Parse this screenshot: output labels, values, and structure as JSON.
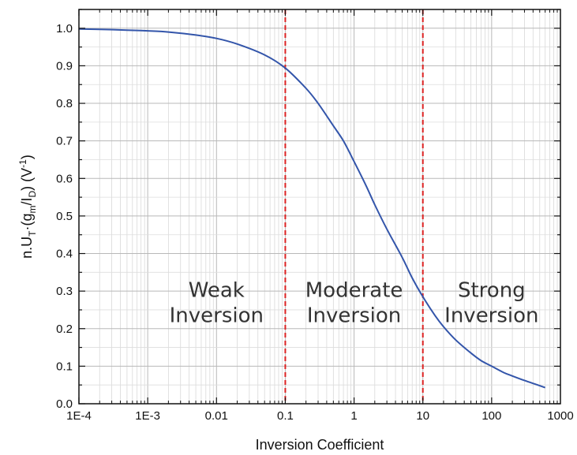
{
  "chart_data": {
    "type": "line",
    "title": "",
    "xlabel": "Inversion Coefficient",
    "ylabel": {
      "parts": [
        "n.U",
        "T",
        "·(g",
        "m",
        "/I",
        "D",
        ") (V",
        "-1",
        ")"
      ]
    },
    "x_scale": "log",
    "xlim": [
      0.0001,
      1000
    ],
    "ylim": [
      0,
      1.05
    ],
    "grid": true,
    "x_ticks": [
      {
        "value": 0.0001,
        "label": "1E-4"
      },
      {
        "value": 0.001,
        "label": "1E-3"
      },
      {
        "value": 0.01,
        "label": "0.01"
      },
      {
        "value": 0.1,
        "label": "0.1"
      },
      {
        "value": 1,
        "label": "1"
      },
      {
        "value": 10,
        "label": "10"
      },
      {
        "value": 100,
        "label": "100"
      },
      {
        "value": 1000,
        "label": "1000"
      }
    ],
    "y_ticks": [
      {
        "value": 0.0,
        "label": "0.0"
      },
      {
        "value": 0.1,
        "label": "0.1"
      },
      {
        "value": 0.2,
        "label": "0.2"
      },
      {
        "value": 0.3,
        "label": "0.3"
      },
      {
        "value": 0.4,
        "label": "0.4"
      },
      {
        "value": 0.5,
        "label": "0.5"
      },
      {
        "value": 0.6,
        "label": "0.6"
      },
      {
        "value": 0.7,
        "label": "0.7"
      },
      {
        "value": 0.8,
        "label": "0.8"
      },
      {
        "value": 0.9,
        "label": "0.9"
      },
      {
        "value": 1.0,
        "label": "1.0"
      }
    ],
    "series": [
      {
        "color": "#3355aa",
        "x": [
          0.0001,
          0.0002,
          0.0005,
          0.001,
          0.002,
          0.005,
          0.01,
          0.02,
          0.05,
          0.1,
          0.2,
          0.3,
          0.5,
          0.7,
          1,
          1.5,
          2,
          3,
          5,
          7,
          10,
          15,
          20,
          30,
          50,
          70,
          100,
          150,
          200,
          300,
          450,
          600
        ],
        "y": [
          0.998,
          0.997,
          0.995,
          0.993,
          0.99,
          0.982,
          0.973,
          0.958,
          0.929,
          0.894,
          0.84,
          0.8,
          0.74,
          0.7,
          0.645,
          0.58,
          0.53,
          0.465,
          0.39,
          0.335,
          0.285,
          0.235,
          0.205,
          0.17,
          0.135,
          0.115,
          0.1,
          0.083,
          0.074,
          0.062,
          0.051,
          0.043
        ]
      }
    ],
    "boundaries": [
      {
        "x": 0.1,
        "color": "#dd2222",
        "style": "dashed"
      },
      {
        "x": 10,
        "color": "#dd2222",
        "style": "dashed"
      }
    ],
    "annotations": [
      {
        "lines": [
          "Weak",
          "Inversion"
        ],
        "x": 0.01,
        "y": 0.285
      },
      {
        "lines": [
          "Moderate",
          "Inversion"
        ],
        "x": 1,
        "y": 0.285
      },
      {
        "lines": [
          "Strong",
          "Inversion"
        ],
        "x": 100,
        "y": 0.285
      }
    ]
  }
}
